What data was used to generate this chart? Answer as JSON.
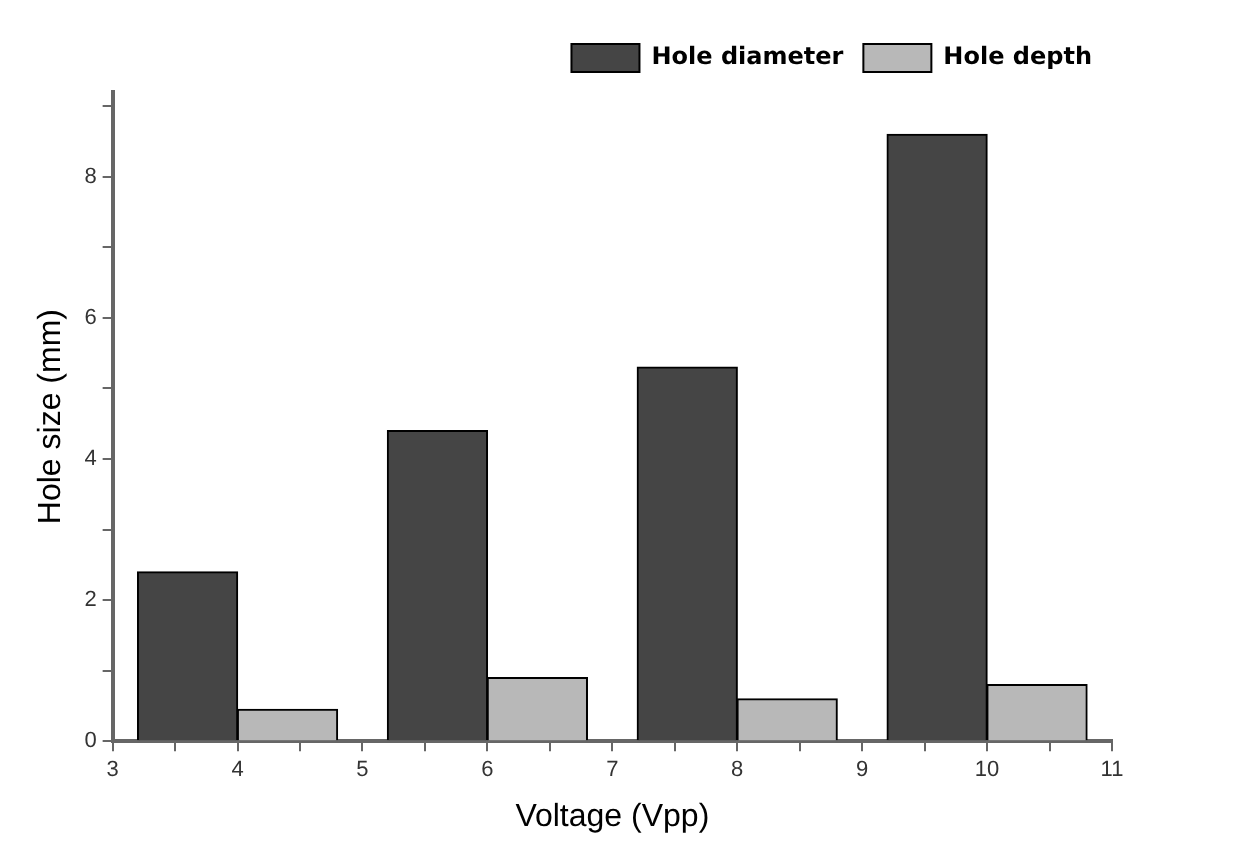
{
  "chart_data": {
    "type": "bar",
    "xlabel": "Voltage (Vpp)",
    "ylabel": "Hole size (mm)",
    "x": [
      4,
      6,
      8,
      10
    ],
    "series": [
      {
        "name": "Hole diameter",
        "color": "#454545",
        "values": [
          2.4,
          4.4,
          5.3,
          8.6
        ]
      },
      {
        "name": "Hole depth",
        "color": "#b8b8b8",
        "values": [
          0.45,
          0.9,
          0.6,
          0.8
        ]
      }
    ],
    "xlim": [
      3,
      11
    ],
    "xticks": [
      3,
      {
        "value": 3.5,
        "label": null
      },
      4,
      {
        "value": 4.5,
        "label": null
      },
      5,
      {
        "value": 5.5,
        "label": null
      },
      6,
      {
        "value": 6.5,
        "label": null
      },
      7,
      {
        "value": 7.5,
        "label": null
      },
      8,
      {
        "value": 8.5,
        "label": null
      },
      9,
      {
        "value": 9.5,
        "label": null
      },
      10,
      {
        "value": 10.5,
        "label": null
      },
      11
    ],
    "ylim": [
      0,
      9.2
    ],
    "yticks": [
      0,
      {
        "value": 1,
        "label": null
      },
      2,
      {
        "value": 3,
        "label": null
      },
      4,
      {
        "value": 5,
        "label": null
      },
      6,
      {
        "value": 7,
        "label": null
      },
      8,
      {
        "value": 9,
        "label": null
      }
    ],
    "legend": "top right"
  }
}
